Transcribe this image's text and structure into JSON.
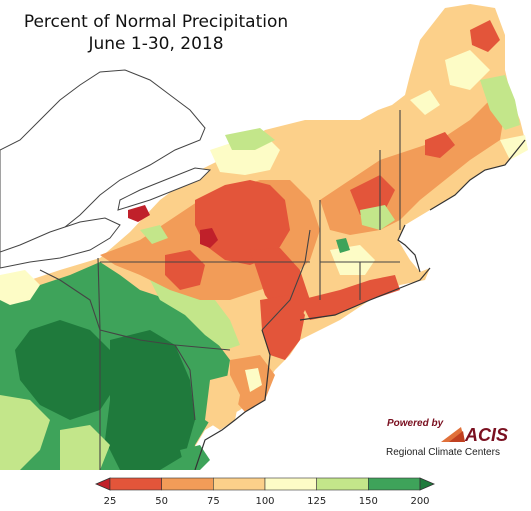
{
  "title": {
    "line1": "Percent of Normal Precipitation",
    "line2": "June 1-30, 2018"
  },
  "legend": {
    "ticks": [
      "25",
      "50",
      "75",
      "100",
      "125",
      "150",
      "200"
    ],
    "colors": [
      "#c0202a",
      "#e3553a",
      "#f29c58",
      "#fcd08a",
      "#fdfcc6",
      "#c3e68a",
      "#3ea35a",
      "#1f7a3c"
    ],
    "underflow_color": "#c0202a",
    "overflow_color": "#1f7a3c"
  },
  "logo": {
    "powered_by": "Powered by",
    "brand": "ACIS",
    "org": "Regional Climate Centers"
  },
  "colors": {
    "water": "#ffffff",
    "outline": "#444444",
    "dry_severe": "#c0202a",
    "dry": "#e3553a",
    "below_normal": "#f29c58",
    "near_below": "#fcd08a",
    "near_above": "#fdfcc6",
    "above_normal": "#c3e68a",
    "wet": "#3ea35a",
    "very_wet": "#1f7a3c"
  }
}
